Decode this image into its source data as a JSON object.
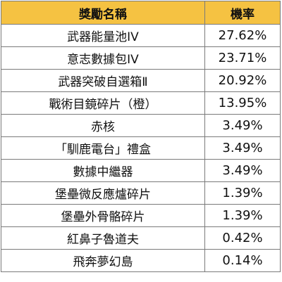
{
  "table": {
    "header": {
      "name": "獎勵名稱",
      "rate": "機率"
    },
    "rows": [
      {
        "name": "武器能量池IV",
        "rate": "27.62%"
      },
      {
        "name": "意志數據包IV",
        "rate": "23.71%"
      },
      {
        "name": "武器突破自選箱Ⅱ",
        "rate": "20.92%"
      },
      {
        "name": "戰術目鏡碎片（橙）",
        "rate": "13.95%"
      },
      {
        "name": "赤核",
        "rate": "3.49%"
      },
      {
        "name": "「馴鹿電台」禮盒",
        "rate": "3.49%"
      },
      {
        "name": "數據中繼器",
        "rate": "3.49%"
      },
      {
        "name": "堡壘微反應爐碎片",
        "rate": "1.39%"
      },
      {
        "name": "堡壘外骨骼碎片",
        "rate": "1.39%"
      },
      {
        "name": "紅鼻子魯道夫",
        "rate": "0.42%"
      },
      {
        "name": "飛奔夢幻島",
        "rate": "0.14%"
      }
    ]
  },
  "colors": {
    "header_background": "#f5c242",
    "border": "#7a7a7a"
  }
}
